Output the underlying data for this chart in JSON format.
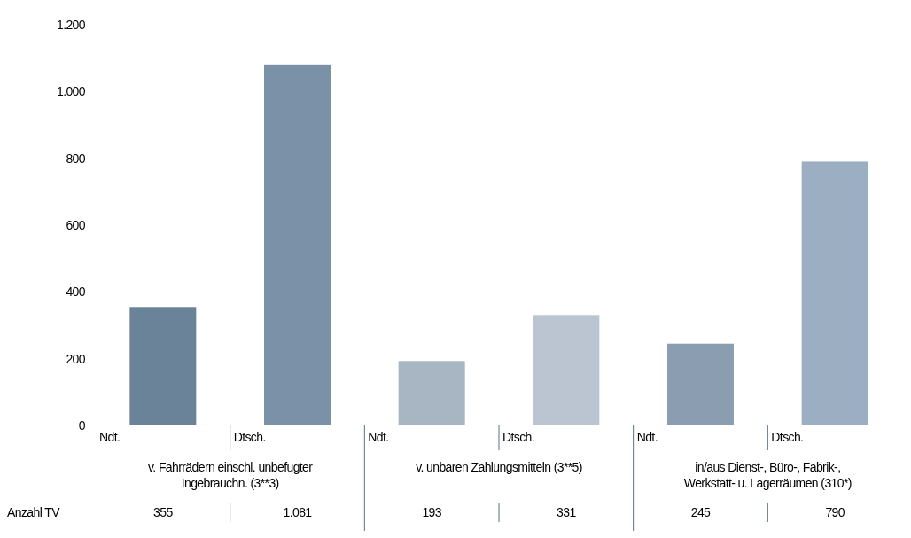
{
  "chart_data": {
    "type": "bar",
    "categories": [
      "Ndt.",
      "Dtsch.",
      "Ndt.",
      "Dtsch.",
      "Ndt.",
      "Dtsch."
    ],
    "series": [
      {
        "name": "Anzahl TV",
        "colors": [
          "#6b8399",
          "#7b91a8",
          "#a8b5c3",
          "#bac5d1",
          "#8b9db0",
          "#9caec1"
        ],
        "values": [
          355,
          1081,
          193,
          331,
          245,
          790
        ],
        "value_labels": [
          "355",
          "1.081",
          "193",
          "331",
          "245",
          "790"
        ]
      }
    ],
    "ylim": [
      0,
      1200
    ],
    "yticks": [
      0,
      {
        "value": 200,
        "label": "200"
      },
      {
        "value": 400,
        "label": "400"
      },
      {
        "value": 600,
        "label": "600"
      },
      {
        "value": 800,
        "label": "800"
      },
      {
        "value": 1000,
        "label": "1.000"
      },
      {
        "value": 1200,
        "label": "1.200"
      }
    ],
    "annotations": [
      "v. Fahrrädern einschl. unbefugter Ingebrauchn. (3**3)",
      "v. unbaren Zahlungsmitteln (3**5)",
      "in/aus Dienst-, Büro-, Fabrik-, Werkstatt- u. Lagerräumen (310*)"
    ],
    "grid": false
  }
}
